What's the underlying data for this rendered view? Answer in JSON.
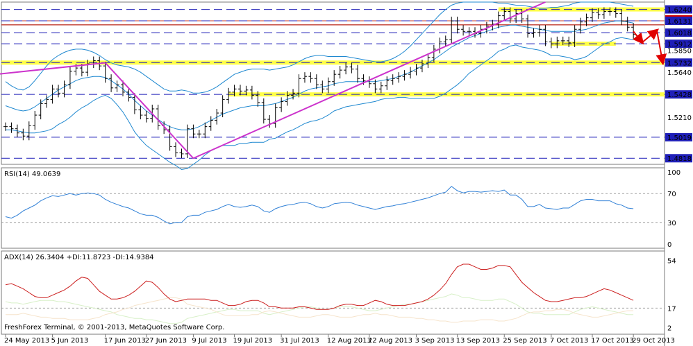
{
  "chart_data": {
    "type": "line",
    "price_panel": {
      "ylim": [
        1.476,
        1.631
      ],
      "hlines": [
        1.624,
        1.6131,
        1.6018,
        1.5912,
        1.5732,
        1.5428,
        1.5019,
        1.4818
      ],
      "hline_labels": [
        "1.6240",
        "1.6131",
        "1.6018",
        "1.5912",
        "1.5732",
        "1.5428",
        "1.5019",
        "1.4818"
      ],
      "label_only": [
        {
          "y": 1.6145,
          "text": "1.6131"
        },
        {
          "y": 1.585,
          "text": "1.5850"
        },
        {
          "y": 1.564,
          "text": "1.5640"
        },
        {
          "y": 1.521,
          "text": "1.5210"
        }
      ],
      "highlighted_label": "1.6131",
      "highlight_bands": [
        1.624,
        1.5912,
        1.5732,
        1.5428
      ],
      "close": [
        1.512,
        1.51,
        1.506,
        1.503,
        1.513,
        1.523,
        1.534,
        1.538,
        1.548,
        1.544,
        1.552,
        1.565,
        1.568,
        1.564,
        1.572,
        1.575,
        1.57,
        1.558,
        1.549,
        1.552,
        1.545,
        1.54,
        1.528,
        1.523,
        1.52,
        1.529,
        1.513,
        1.509,
        1.493,
        1.487,
        1.486,
        1.51,
        1.505,
        1.505,
        1.512,
        1.518,
        1.525,
        1.538,
        1.545,
        1.548,
        1.546,
        1.547,
        1.542,
        1.535,
        1.519,
        1.515,
        1.53,
        1.536,
        1.542,
        1.544,
        1.558,
        1.56,
        1.558,
        1.552,
        1.548,
        1.555,
        1.562,
        1.566,
        1.569,
        1.567,
        1.558,
        1.556,
        1.553,
        1.548,
        1.551,
        1.556,
        1.558,
        1.56,
        1.562,
        1.565,
        1.568,
        1.572,
        1.578,
        1.586,
        1.593,
        1.595,
        1.613,
        1.605,
        1.603,
        1.603,
        1.601,
        1.605,
        1.608,
        1.61,
        1.618,
        1.622,
        1.615,
        1.62,
        1.615,
        1.601,
        1.602,
        1.605,
        1.593,
        1.591,
        1.594,
        1.594,
        1.592,
        1.605,
        1.612,
        1.616,
        1.621,
        1.619,
        1.622,
        1.622,
        1.62,
        1.613,
        1.607,
        1.6
      ],
      "bb_mid": [
        1.532,
        1.53,
        1.528,
        1.527,
        1.528,
        1.531,
        1.535,
        1.539,
        1.543,
        1.547,
        1.55,
        1.553,
        1.556,
        1.558,
        1.559,
        1.56,
        1.56,
        1.559,
        1.556,
        1.552,
        1.548,
        1.543,
        1.537,
        1.532,
        1.527,
        1.523,
        1.519,
        1.515,
        1.512,
        1.51,
        1.509,
        1.509,
        1.51,
        1.512,
        1.515,
        1.518,
        1.521,
        1.524,
        1.526,
        1.528,
        1.53,
        1.531,
        1.532,
        1.532,
        1.532,
        1.533,
        1.534,
        1.536,
        1.538,
        1.54,
        1.543,
        1.546,
        1.548,
        1.549,
        1.55,
        1.551,
        1.553,
        1.554,
        1.555,
        1.555,
        1.555,
        1.555,
        1.555,
        1.555,
        1.556,
        1.557,
        1.558,
        1.56,
        1.562,
        1.564,
        1.567,
        1.57,
        1.573,
        1.576,
        1.58,
        1.584,
        1.588,
        1.591,
        1.594,
        1.597,
        1.599,
        1.601,
        1.603,
        1.605,
        1.607,
        1.608,
        1.609,
        1.609,
        1.608,
        1.607,
        1.606,
        1.605,
        1.604,
        1.603,
        1.603,
        1.603,
        1.603,
        1.603,
        1.604,
        1.605,
        1.607,
        1.609,
        1.611,
        1.612,
        1.613,
        1.613,
        1.612,
        1.611
      ],
      "bb_up": [
        1.555,
        1.551,
        1.548,
        1.547,
        1.55,
        1.556,
        1.563,
        1.57,
        1.576,
        1.58,
        1.583,
        1.585,
        1.586,
        1.586,
        1.585,
        1.583,
        1.58,
        1.576,
        1.573,
        1.571,
        1.57,
        1.569,
        1.567,
        1.564,
        1.56,
        1.556,
        1.552,
        1.548,
        1.546,
        1.546,
        1.547,
        1.546,
        1.544,
        1.544,
        1.545,
        1.547,
        1.55,
        1.554,
        1.558,
        1.562,
        1.564,
        1.566,
        1.567,
        1.567,
        1.567,
        1.566,
        1.567,
        1.568,
        1.569,
        1.571,
        1.574,
        1.577,
        1.579,
        1.58,
        1.58,
        1.579,
        1.579,
        1.579,
        1.579,
        1.578,
        1.577,
        1.576,
        1.575,
        1.574,
        1.574,
        1.575,
        1.577,
        1.58,
        1.584,
        1.589,
        1.595,
        1.601,
        1.607,
        1.613,
        1.619,
        1.624,
        1.628,
        1.63,
        1.631,
        1.631,
        1.631,
        1.631,
        1.631,
        1.631,
        1.63,
        1.63,
        1.629,
        1.628,
        1.628,
        1.627,
        1.626,
        1.625,
        1.625,
        1.626,
        1.626,
        1.627,
        1.628,
        1.63,
        1.631,
        1.631,
        1.631,
        1.631,
        1.631,
        1.631,
        1.63,
        1.629,
        1.628,
        1.627
      ],
      "bb_low": [
        1.509,
        1.509,
        1.508,
        1.507,
        1.506,
        1.506,
        1.507,
        1.508,
        1.51,
        1.514,
        1.517,
        1.521,
        1.526,
        1.53,
        1.533,
        1.537,
        1.54,
        1.542,
        1.539,
        1.533,
        1.526,
        1.517,
        1.507,
        1.5,
        1.494,
        1.49,
        1.486,
        1.482,
        1.478,
        1.475,
        1.471,
        1.472,
        1.476,
        1.48,
        1.485,
        1.489,
        1.492,
        1.494,
        1.494,
        1.494,
        1.496,
        1.496,
        1.497,
        1.497,
        1.497,
        1.5,
        1.501,
        1.504,
        1.507,
        1.509,
        1.512,
        1.515,
        1.517,
        1.518,
        1.52,
        1.523,
        1.527,
        1.529,
        1.531,
        1.532,
        1.533,
        1.534,
        1.535,
        1.536,
        1.538,
        1.539,
        1.539,
        1.54,
        1.54,
        1.539,
        1.539,
        1.539,
        1.539,
        1.539,
        1.541,
        1.544,
        1.548,
        1.552,
        1.557,
        1.563,
        1.567,
        1.571,
        1.575,
        1.579,
        1.584,
        1.586,
        1.589,
        1.59,
        1.588,
        1.587,
        1.586,
        1.585,
        1.583,
        1.58,
        1.58,
        1.579,
        1.578,
        1.576,
        1.577,
        1.579,
        1.583,
        1.587,
        1.591,
        1.593,
        1.596,
        1.597,
        1.596,
        1.595
      ]
    },
    "rsi_panel": {
      "label": "RSI(14) 49.0639",
      "ylim": [
        0,
        100
      ],
      "ticks": [
        100,
        70,
        30,
        0
      ],
      "levels": [
        70,
        30
      ],
      "values": [
        38,
        36,
        40,
        46,
        50,
        54,
        60,
        64,
        67,
        66,
        68,
        70,
        68,
        70,
        71,
        70,
        68,
        62,
        58,
        55,
        52,
        50,
        46,
        42,
        40,
        40,
        37,
        32,
        28,
        30,
        30,
        38,
        40,
        40,
        44,
        46,
        48,
        52,
        55,
        52,
        51,
        52,
        54,
        52,
        46,
        44,
        49,
        52,
        54,
        55,
        57,
        58,
        56,
        52,
        50,
        52,
        56,
        57,
        58,
        57,
        54,
        52,
        50,
        48,
        50,
        52,
        53,
        55,
        56,
        58,
        60,
        62,
        64,
        67,
        70,
        72,
        80,
        74,
        71,
        73,
        73,
        72,
        73,
        74,
        73,
        75,
        68,
        68,
        62,
        52,
        52,
        55,
        50,
        49,
        48,
        50,
        50,
        55,
        60,
        62,
        62,
        60,
        60,
        60,
        56,
        54,
        50,
        49
      ]
    },
    "adx_panel": {
      "label": "ADX(14) 26.3404 +DI:11.8723 -DI:14.9384",
      "ylim": [
        0,
        58
      ],
      "ticks": [
        54,
        17,
        2
      ],
      "levels": [
        17
      ],
      "adx": [
        35,
        36,
        34,
        32,
        29,
        26,
        25,
        25,
        27,
        29,
        31,
        34,
        38,
        41,
        40,
        35,
        30,
        27,
        24,
        24,
        25,
        27,
        30,
        34,
        38,
        37,
        33,
        28,
        24,
        22,
        23,
        24,
        24,
        24,
        24,
        23,
        23,
        21,
        19,
        19,
        20,
        22,
        23,
        23,
        21,
        18,
        18,
        17,
        17,
        17,
        18,
        18,
        17,
        16,
        16,
        16,
        17,
        19,
        20,
        20,
        19,
        19,
        21,
        23,
        22,
        20,
        19,
        19,
        19,
        20,
        21,
        22,
        24,
        27,
        31,
        36,
        43,
        49,
        51,
        51,
        49,
        47,
        47,
        48,
        50,
        50,
        49,
        43,
        37,
        33,
        29,
        26,
        23,
        22,
        22,
        23,
        24,
        25,
        25,
        26,
        28,
        30,
        32,
        31,
        29,
        27,
        25,
        23
      ],
      "plus_di": [
        22,
        21,
        21,
        20,
        21,
        22,
        23,
        23,
        23,
        22,
        22,
        21,
        20,
        19,
        18,
        17,
        16,
        15,
        14,
        12,
        11,
        10,
        9,
        9,
        8,
        8,
        7,
        6,
        5,
        5,
        6,
        9,
        10,
        11,
        12,
        13,
        14,
        15,
        16,
        16,
        15,
        15,
        15,
        15,
        13,
        12,
        13,
        14,
        15,
        16,
        17,
        18,
        18,
        17,
        16,
        16,
        17,
        18,
        18,
        18,
        17,
        16,
        15,
        15,
        16,
        17,
        18,
        19,
        20,
        20,
        21,
        22,
        23,
        24,
        25,
        26,
        28,
        27,
        25,
        25,
        24,
        23,
        23,
        23,
        24,
        24,
        22,
        20,
        17,
        14,
        13,
        13,
        12,
        12,
        12,
        12,
        12,
        14,
        16,
        17,
        18,
        17,
        16,
        15,
        14,
        13,
        12,
        12
      ],
      "minus_di": [
        12,
        12,
        12,
        13,
        12,
        11,
        10,
        10,
        9,
        9,
        9,
        8,
        8,
        8,
        8,
        9,
        10,
        12,
        13,
        14,
        16,
        17,
        19,
        20,
        21,
        22,
        23,
        24,
        25,
        25,
        24,
        20,
        19,
        18,
        17,
        16,
        14,
        12,
        11,
        11,
        11,
        11,
        12,
        12,
        14,
        15,
        14,
        13,
        12,
        11,
        10,
        10,
        10,
        11,
        12,
        12,
        11,
        10,
        10,
        10,
        11,
        12,
        12,
        13,
        12,
        12,
        11,
        10,
        10,
        10,
        9,
        9,
        8,
        8,
        7,
        7,
        6,
        6,
        7,
        7,
        7,
        8,
        8,
        8,
        7,
        7,
        8,
        9,
        11,
        13,
        14,
        14,
        15,
        15,
        16,
        16,
        15,
        13,
        12,
        11,
        10,
        10,
        11,
        12,
        13,
        14,
        15,
        15
      ]
    },
    "x_labels": [
      "24 May 2013",
      "5 Jun 2013",
      "17 Jun 2013",
      "27 Jun 2013",
      "9 Jul 2013",
      "19 Jul 2013",
      "31 Jul 2013",
      "12 Aug 2013",
      "22 Aug 2013",
      "3 Sep 2013",
      "13 Sep 2013",
      "25 Sep 2013",
      "7 Oct 2013",
      "17 Oct 2013",
      "29 Oct 2013"
    ],
    "x_label_index": [
      0,
      8,
      17,
      24,
      32,
      39,
      47,
      55,
      62,
      70,
      77,
      85,
      93,
      100,
      107
    ],
    "trendlines": [
      {
        "from": [
          -10,
          1.557
        ],
        "to": [
          17,
          1.573
        ]
      },
      {
        "from": [
          17,
          1.573
        ],
        "to": [
          32,
          1.4818
        ]
      },
      {
        "from": [
          32,
          1.4818
        ],
        "to": [
          92,
          1.631
        ]
      }
    ],
    "forecast_arrows": [
      {
        "from": [
          107,
          1.603
        ],
        "to": [
          108.5,
          1.5925
        ]
      },
      {
        "from": [
          108.5,
          1.5925
        ],
        "to": [
          111,
          1.604
        ]
      },
      {
        "from": [
          111,
          1.604
        ],
        "to": [
          112,
          1.5732
        ]
      }
    ],
    "colors": {
      "price": "#000000",
      "bollinger": "#1e88d0",
      "hline": "#1f1fb8",
      "highlight": "#ffff33",
      "resistance": "#c0392b",
      "trend": "#cc33cc",
      "forecast": "#e00000",
      "rsi": "#2e7fd6",
      "adx": "#cc1f1f",
      "plus_di": "#d8f0c8",
      "minus_di": "#f6e4cc",
      "panel_border": "#7a7a7a",
      "label_bg": "#1f1fb8",
      "label_hl_bg": "#d20000",
      "grid": "#a0a0a0"
    }
  },
  "footer": {
    "copyright": "FreshForex Terminal, © 2001-2013, MetaQuotes Software Corp."
  }
}
